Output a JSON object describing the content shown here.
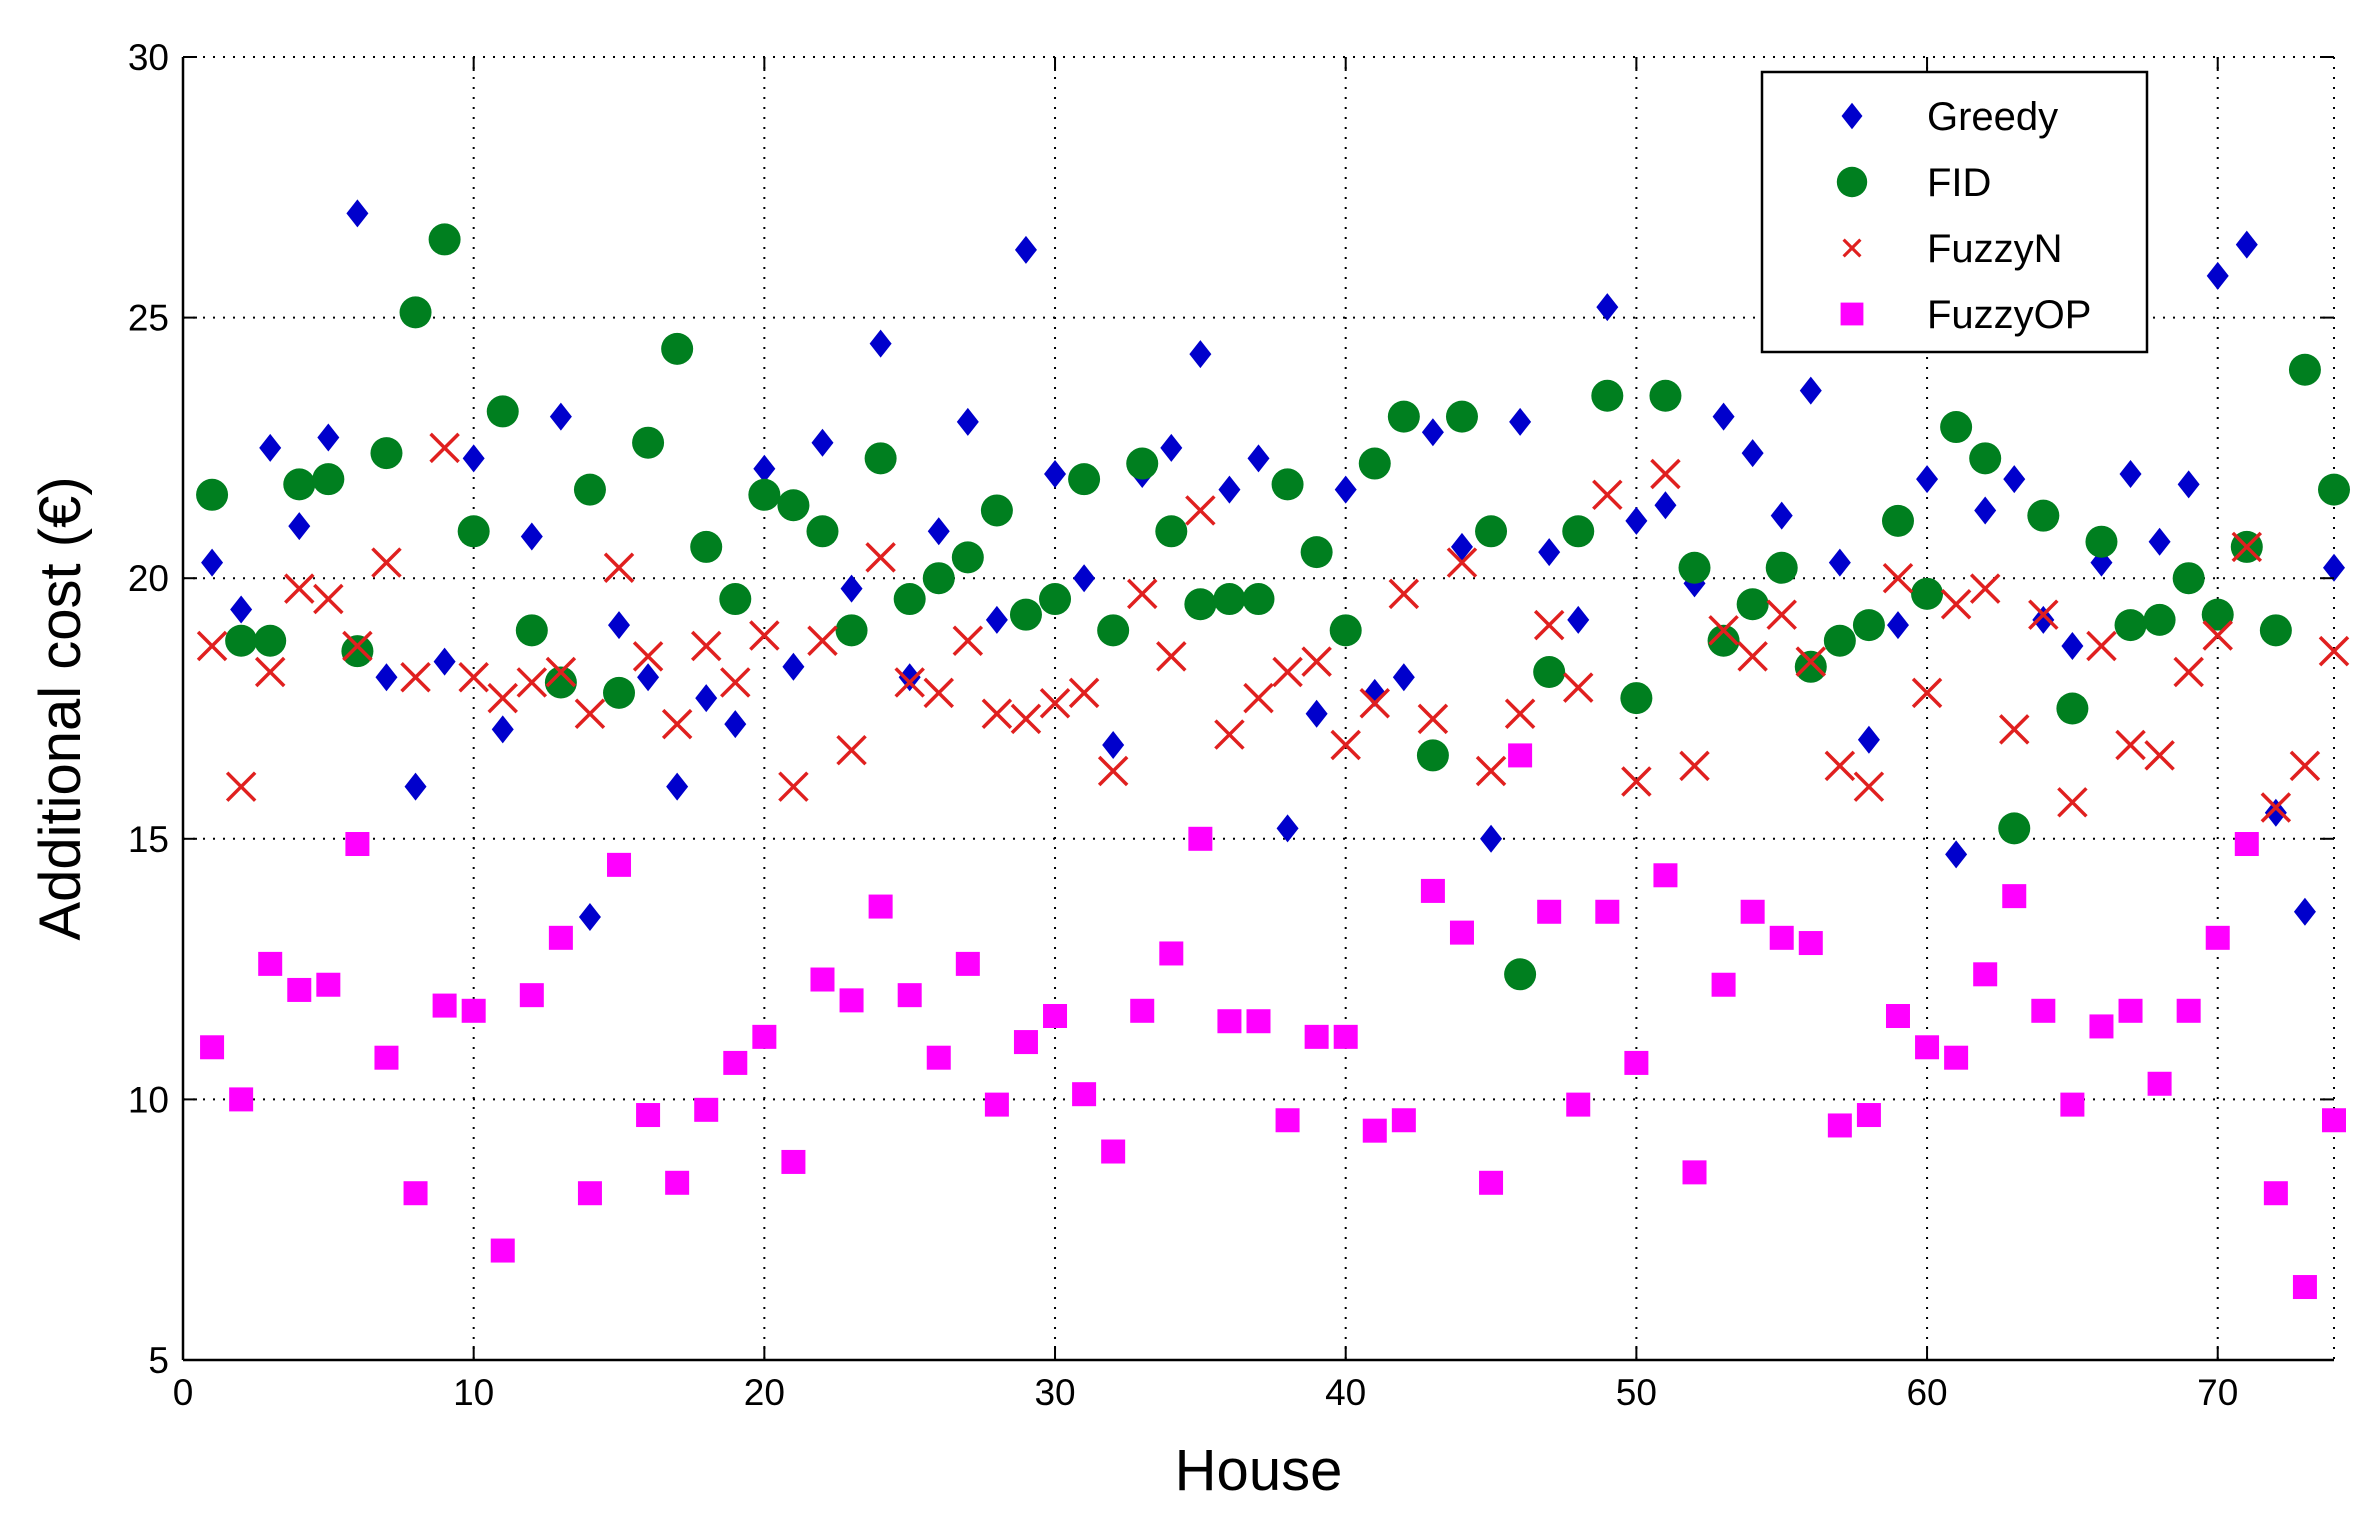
{
  "chart_data": {
    "type": "scatter",
    "xlabel": "House",
    "ylabel": "Additional cost (€)",
    "xlim": [
      0,
      74
    ],
    "ylim": [
      5,
      30
    ],
    "xticks": [
      0,
      10,
      20,
      30,
      40,
      50,
      60,
      70
    ],
    "yticks": [
      5,
      10,
      15,
      20,
      25,
      30
    ],
    "grid": true,
    "grid_style": "dotted",
    "legend_position": "top-right",
    "x": [
      1,
      2,
      3,
      4,
      5,
      6,
      7,
      8,
      9,
      10,
      11,
      12,
      13,
      14,
      15,
      16,
      17,
      18,
      19,
      20,
      21,
      22,
      23,
      24,
      25,
      26,
      27,
      28,
      29,
      30,
      31,
      32,
      33,
      34,
      35,
      36,
      37,
      38,
      39,
      40,
      41,
      42,
      43,
      44,
      45,
      46,
      47,
      48,
      49,
      50,
      51,
      52,
      53,
      54,
      55,
      56,
      57,
      58,
      59,
      60,
      61,
      62,
      63,
      64,
      65,
      66,
      67,
      68,
      69,
      70,
      71,
      72,
      73,
      74
    ],
    "series": [
      {
        "name": "Greedy",
        "marker": "diamond",
        "color": "#0000cc",
        "values": [
          20.3,
          19.4,
          22.5,
          21.0,
          22.7,
          27.0,
          18.1,
          16.0,
          18.4,
          22.3,
          17.1,
          20.8,
          23.1,
          13.5,
          19.1,
          18.1,
          16.0,
          17.7,
          17.2,
          22.1,
          18.3,
          22.6,
          19.8,
          24.5,
          18.1,
          20.9,
          23.0,
          19.2,
          26.3,
          22.0,
          20.0,
          16.8,
          22.0,
          22.5,
          24.3,
          21.7,
          22.3,
          15.2,
          17.4,
          21.7,
          17.8,
          18.1,
          22.8,
          20.6,
          15.0,
          23.0,
          20.5,
          19.2,
          25.2,
          21.1,
          21.4,
          19.9,
          23.1,
          22.4,
          21.2,
          23.6,
          20.3,
          16.9,
          19.1,
          21.9,
          14.7,
          21.3,
          21.9,
          19.2,
          18.7,
          20.3,
          22.0,
          20.7,
          21.8,
          25.8,
          26.4,
          15.5,
          13.6,
          20.2
        ]
      },
      {
        "name": "FID",
        "marker": "circle",
        "color": "#007f1f",
        "values": [
          21.6,
          18.8,
          18.8,
          21.8,
          21.9,
          18.6,
          22.4,
          25.1,
          26.5,
          20.9,
          23.2,
          19.0,
          18.0,
          21.7,
          17.8,
          22.6,
          24.4,
          20.6,
          19.6,
          21.6,
          21.4,
          20.9,
          19.0,
          22.3,
          19.6,
          20.0,
          20.4,
          21.3,
          19.3,
          19.6,
          21.9,
          19.0,
          22.2,
          20.9,
          19.5,
          19.6,
          19.6,
          21.8,
          20.5,
          19.0,
          22.2,
          23.1,
          16.6,
          23.1,
          20.9,
          12.4,
          18.2,
          20.9,
          23.5,
          17.7,
          23.5,
          20.2,
          18.8,
          19.5,
          20.2,
          18.3,
          18.8,
          19.1,
          21.1,
          19.7,
          22.9,
          22.3,
          15.2,
          21.2,
          17.5,
          20.7,
          19.1,
          19.2,
          20.0,
          19.3,
          20.6,
          19.0,
          24.0,
          21.7
        ]
      },
      {
        "name": "FuzzyN",
        "marker": "x",
        "color": "#e0201f",
        "values": [
          18.7,
          16.0,
          18.2,
          19.8,
          19.6,
          18.7,
          20.3,
          18.1,
          22.5,
          18.1,
          17.7,
          18.0,
          18.2,
          17.4,
          20.2,
          18.5,
          17.2,
          18.7,
          18.0,
          18.9,
          16.0,
          18.8,
          16.7,
          20.4,
          18.0,
          17.8,
          18.8,
          17.4,
          17.3,
          17.6,
          17.8,
          16.3,
          19.7,
          18.5,
          21.3,
          17.0,
          17.7,
          18.2,
          18.4,
          16.8,
          17.6,
          19.7,
          17.3,
          20.3,
          16.3,
          17.4,
          19.1,
          17.9,
          21.6,
          16.1,
          22.0,
          16.4,
          19.0,
          18.5,
          19.3,
          18.4,
          16.4,
          16.0,
          20.0,
          17.8,
          19.5,
          19.8,
          17.1,
          19.3,
          15.7,
          18.7,
          16.8,
          16.6,
          18.2,
          18.9,
          20.6,
          15.6,
          16.4,
          18.6
        ]
      },
      {
        "name": "FuzzyOP",
        "marker": "square",
        "color": "#ff00ff",
        "values": [
          11.0,
          10.0,
          12.6,
          12.1,
          12.2,
          14.9,
          10.8,
          8.2,
          11.8,
          11.7,
          7.1,
          12.0,
          13.1,
          8.2,
          14.5,
          9.7,
          8.4,
          9.8,
          10.7,
          11.2,
          8.8,
          12.3,
          11.9,
          13.7,
          12.0,
          10.8,
          12.6,
          9.9,
          11.1,
          11.6,
          10.1,
          9.0,
          11.7,
          12.8,
          15.0,
          11.5,
          11.5,
          9.6,
          11.2,
          11.2,
          9.4,
          9.6,
          14.0,
          13.2,
          8.4,
          16.6,
          13.6,
          9.9,
          13.6,
          10.7,
          14.3,
          8.6,
          12.2,
          13.6,
          13.1,
          13.0,
          9.5,
          9.7,
          11.6,
          11.0,
          10.8,
          12.4,
          13.9,
          11.7,
          9.9,
          11.4,
          11.7,
          10.3,
          11.7,
          13.1,
          14.9,
          8.2,
          6.4,
          9.6
        ]
      }
    ]
  }
}
